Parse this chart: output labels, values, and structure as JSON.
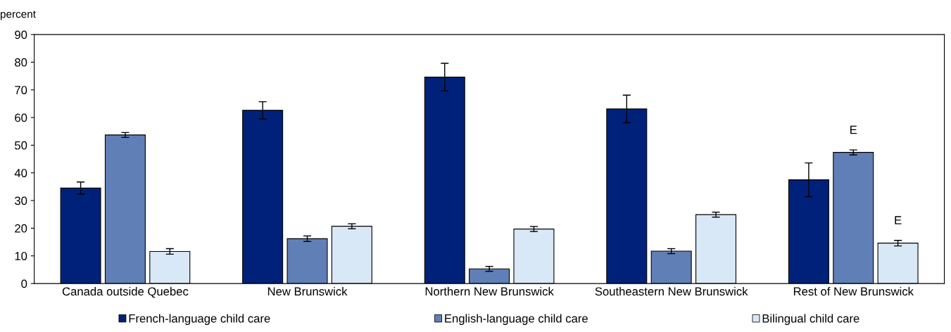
{
  "chart_data": {
    "type": "bar",
    "ylabel": "percent",
    "categories": [
      "Canada outside Quebec",
      "New Brunswick",
      "Northern New Brunswick",
      "Southeastern New Brunswick",
      "Rest of New Brunswick"
    ],
    "series": [
      {
        "name": "French-language child care",
        "color": "#00217a",
        "values": [
          34.5,
          62.6,
          74.6,
          63.1,
          37.5
        ],
        "errors": [
          2.2,
          3.1,
          5,
          5,
          6.1
        ]
      },
      {
        "name": "English-language child care",
        "color": "#607fb6",
        "values": [
          53.7,
          16.2,
          5.3,
          11.7,
          47.4
        ],
        "errors": [
          0.9,
          1,
          0.9,
          0.9,
          0.9
        ],
        "value_labels": [
          null,
          null,
          null,
          null,
          "E"
        ]
      },
      {
        "name": "Bilingual child care",
        "color": "#d9e8f7",
        "values": [
          11.6,
          20.7,
          19.7,
          24.9,
          14.6
        ],
        "errors": [
          1,
          0.9,
          0.9,
          0.9,
          1
        ],
        "value_labels": [
          null,
          null,
          null,
          null,
          "E"
        ]
      }
    ],
    "ylim": [
      0,
      90
    ],
    "yticks": [
      0,
      10,
      20,
      30,
      40,
      50,
      60,
      70,
      80,
      90
    ],
    "grid": false,
    "legend": "bottom"
  }
}
